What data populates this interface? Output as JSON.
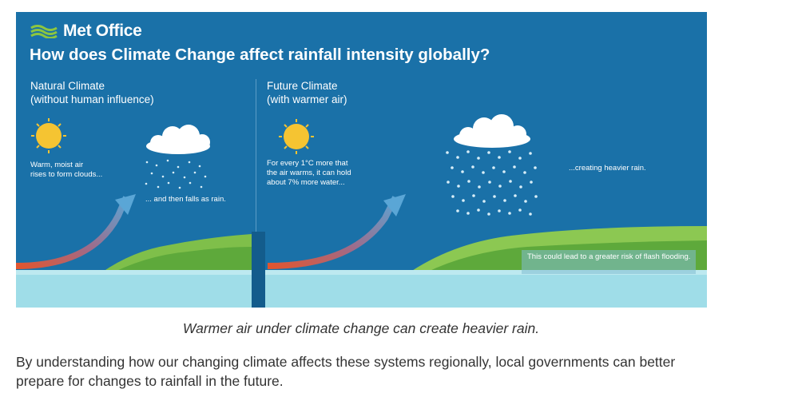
{
  "infographic": {
    "brand": "Met Office",
    "headline": "How does Climate Change affect rainfall intensity globally?",
    "natural": {
      "title": "Natural Climate",
      "subtitle": "(without human influence)",
      "note_line1": "Warm, moist air",
      "note_line2": "rises to form clouds...",
      "rain_note": "... and then falls as rain."
    },
    "future": {
      "title": "Future Climate",
      "subtitle": "(with warmer air)",
      "note_line1": "For every 1°C more that",
      "note_line2": "the air warms, it can hold",
      "note_line3": "about 7% more water...",
      "rain_note": "...creating heavier rain.",
      "flood_note": "This could lead to a greater risk of flash flooding."
    },
    "colors": {
      "sky": "#1a71a8",
      "sea": "#9fdde8",
      "land": "#7fbf4a",
      "arrow_start": "#e2552e",
      "arrow_end": "#5aa6d6",
      "sun": "#f5c432"
    }
  },
  "caption": "Warmer air under climate change can create heavier rain.",
  "paragraph": "By understanding how our changing climate affects these systems regionally, local governments can better prepare for changes to rainfall in the future."
}
